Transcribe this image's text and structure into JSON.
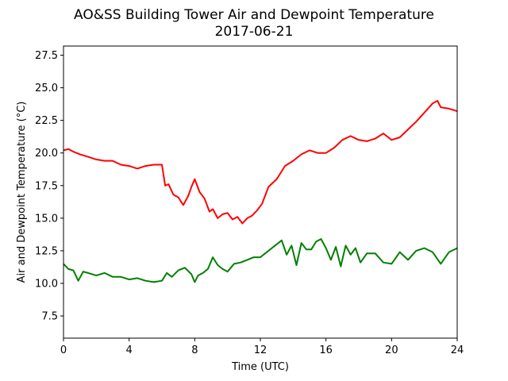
{
  "chart_data": {
    "type": "line",
    "title": "AO&SS Building Tower Air and Dewpoint Temperature",
    "subtitle": "2017-06-21",
    "xlabel": "Time (UTC)",
    "ylabel": "Air and Dewpoint Temperature (°C)",
    "xlim": [
      0,
      24
    ],
    "ylim": [
      5.8,
      28.2
    ],
    "xticks": [
      0,
      4,
      8,
      12,
      16,
      20,
      24
    ],
    "xtick_labels": [
      "0",
      "4",
      "8",
      "12",
      "16",
      "20",
      "24"
    ],
    "yticks": [
      7.5,
      10.0,
      12.5,
      15.0,
      17.5,
      20.0,
      22.5,
      25.0,
      27.5
    ],
    "ytick_labels": [
      "7.5",
      "10.0",
      "12.5",
      "15.0",
      "17.5",
      "20.0",
      "22.5",
      "25.0",
      "27.5"
    ],
    "grid": false,
    "series": [
      {
        "color": "#ff0000",
        "x": [
          0,
          0.3,
          0.6,
          1.0,
          1.5,
          2.0,
          2.5,
          3.0,
          3.5,
          4.0,
          4.5,
          5.0,
          5.5,
          6.0,
          6.2,
          6.4,
          6.7,
          7.0,
          7.3,
          7.6,
          7.8,
          8.0,
          8.3,
          8.6,
          8.9,
          9.1,
          9.4,
          9.7,
          10.0,
          10.3,
          10.6,
          10.9,
          11.2,
          11.5,
          11.8,
          12.1,
          12.5,
          13.0,
          13.5,
          14.0,
          14.5,
          15.0,
          15.5,
          16.0,
          16.5,
          17.0,
          17.5,
          18.0,
          18.5,
          19.0,
          19.5,
          20.0,
          20.5,
          21.0,
          21.5,
          22.0,
          22.5,
          22.8,
          23.0,
          23.5,
          24.0
        ],
        "y": [
          20.2,
          20.3,
          20.1,
          19.9,
          19.7,
          19.5,
          19.4,
          19.4,
          19.1,
          19.0,
          18.8,
          19.0,
          19.1,
          19.1,
          17.5,
          17.6,
          16.8,
          16.6,
          16.0,
          16.7,
          17.4,
          18.0,
          17.0,
          16.5,
          15.5,
          15.7,
          15.0,
          15.3,
          15.4,
          14.9,
          15.1,
          14.6,
          15.0,
          15.2,
          15.6,
          16.1,
          17.4,
          18.0,
          19.0,
          19.4,
          19.9,
          20.2,
          20.0,
          20.0,
          20.4,
          21.0,
          21.3,
          21.0,
          20.9,
          21.1,
          21.5,
          21.0,
          21.2,
          21.8,
          22.4,
          23.1,
          23.8,
          24.0,
          23.5,
          23.4,
          23.2
        ]
      },
      {
        "color": "#008000",
        "x": [
          0,
          0.3,
          0.6,
          0.9,
          1.2,
          1.5,
          2.0,
          2.5,
          3.0,
          3.5,
          4.0,
          4.5,
          5.0,
          5.5,
          6.0,
          6.3,
          6.6,
          7.0,
          7.4,
          7.8,
          8.0,
          8.2,
          8.5,
          8.8,
          9.1,
          9.4,
          9.7,
          10.0,
          10.4,
          10.8,
          11.2,
          11.6,
          12.0,
          12.5,
          13.0,
          13.3,
          13.6,
          13.9,
          14.2,
          14.5,
          14.8,
          15.1,
          15.4,
          15.7,
          16.0,
          16.3,
          16.6,
          16.9,
          17.2,
          17.5,
          17.8,
          18.1,
          18.5,
          19.0,
          19.5,
          20.0,
          20.5,
          21.0,
          21.5,
          22.0,
          22.5,
          23.0,
          23.5,
          24.0
        ],
        "y": [
          11.5,
          11.1,
          11.0,
          10.2,
          10.9,
          10.8,
          10.6,
          10.8,
          10.5,
          10.5,
          10.3,
          10.4,
          10.2,
          10.1,
          10.2,
          10.8,
          10.5,
          11.0,
          11.2,
          10.7,
          10.1,
          10.6,
          10.8,
          11.1,
          12.0,
          11.4,
          11.1,
          10.9,
          11.5,
          11.6,
          11.8,
          12.0,
          12.0,
          12.5,
          13.0,
          13.3,
          12.2,
          12.9,
          11.4,
          13.1,
          12.6,
          12.6,
          13.2,
          13.4,
          12.7,
          11.8,
          12.8,
          11.3,
          12.9,
          12.2,
          12.7,
          11.6,
          12.3,
          12.3,
          11.6,
          11.5,
          12.4,
          11.8,
          12.5,
          12.7,
          12.4,
          11.5,
          12.4,
          12.7
        ]
      }
    ]
  }
}
